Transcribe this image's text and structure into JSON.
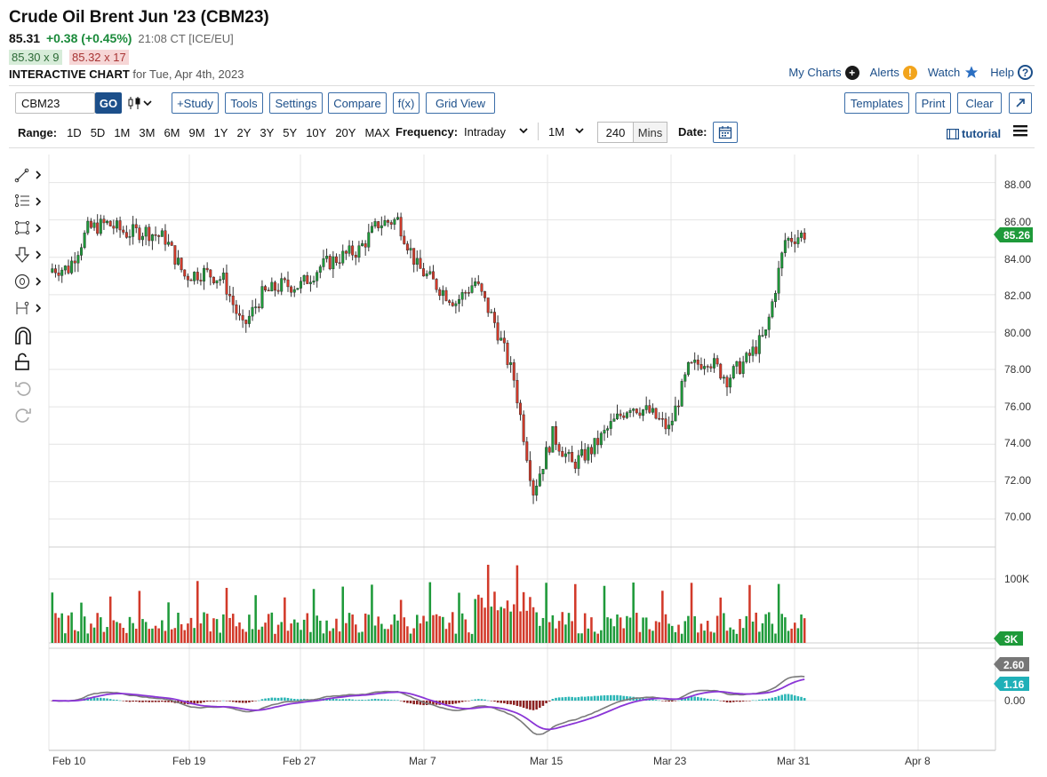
{
  "header": {
    "title": "Crude Oil Brent Jun '23 (CBM23)",
    "last": "85.31",
    "change": "+0.38 (+0.45%)",
    "time": "21:08 CT [ICE/EU]",
    "bid": "85.30 x 9",
    "ask": "85.32 x 17",
    "chart_label": "INTERACTIVE CHART",
    "chart_for": "for Tue, Apr 4th, 2023"
  },
  "links": {
    "my_charts": "My Charts",
    "alerts": "Alerts",
    "watch": "Watch",
    "help": "Help"
  },
  "toolbar": {
    "symbol": "CBM23",
    "go": "GO",
    "study": "+Study",
    "tools": "Tools",
    "settings": "Settings",
    "compare": "Compare",
    "fx": "f(x)",
    "grid_view": "Grid View",
    "templates": "Templates",
    "print": "Print",
    "clear": "Clear"
  },
  "range": {
    "label": "Range:",
    "options": [
      "1D",
      "5D",
      "1M",
      "3M",
      "6M",
      "9M",
      "1Y",
      "2Y",
      "3Y",
      "5Y",
      "10Y",
      "20Y",
      "MAX"
    ],
    "frequency_label": "Frequency:",
    "frequency": "Intraday",
    "interval": "1M",
    "minutes": "240",
    "minutes_unit": "Mins",
    "date_label": "Date:",
    "tutorial": "tutorial"
  },
  "colors": {
    "up": "#1e9a3a",
    "down": "#d23a2a",
    "macd_line": "#7a7a7a",
    "signal_line": "#8a35d6",
    "hist_pos": "#2ab5b5",
    "hist_neg": "#8a1f1f",
    "last_price_tag": "#1e9a3a",
    "accent": "#1c4f8a"
  },
  "chart_data": {
    "type": "candlestick",
    "price_axis": {
      "ticks": [
        "88.00",
        "86.00",
        "84.00",
        "82.00",
        "80.00",
        "78.00",
        "76.00",
        "74.00",
        "72.00",
        "70.00"
      ],
      "ylim": [
        68.5,
        89.5
      ]
    },
    "x_tick_labels": [
      "Feb 10",
      "Feb 19",
      "Feb 27",
      "Mar 7",
      "Mar 15",
      "Mar 23",
      "Mar 31",
      "Apr 8"
    ],
    "last_price_tag": "85.26",
    "price_series": [
      {
        "date": "Feb 9",
        "close": 83.4
      },
      {
        "date": "Feb 10",
        "close": 85.5
      },
      {
        "date": "Feb 13",
        "close": 85.8
      },
      {
        "date": "Feb 14",
        "close": 85.3
      },
      {
        "date": "Feb 15",
        "close": 85.4
      },
      {
        "date": "Feb 16",
        "close": 85.0
      },
      {
        "date": "Feb 17",
        "close": 83.0
      },
      {
        "date": "Feb 20",
        "close": 83.2
      },
      {
        "date": "Feb 21",
        "close": 82.8
      },
      {
        "date": "Feb 22",
        "close": 80.2
      },
      {
        "date": "Feb 23",
        "close": 82.0
      },
      {
        "date": "Feb 24",
        "close": 82.5
      },
      {
        "date": "Feb 27",
        "close": 82.5
      },
      {
        "date": "Feb 28",
        "close": 83.5
      },
      {
        "date": "Mar 1",
        "close": 84.0
      },
      {
        "date": "Mar 2",
        "close": 84.4
      },
      {
        "date": "Mar 3",
        "close": 85.8
      },
      {
        "date": "Mar 6",
        "close": 86.0
      },
      {
        "date": "Mar 7",
        "close": 83.5
      },
      {
        "date": "Mar 8",
        "close": 82.5
      },
      {
        "date": "Mar 9",
        "close": 81.6
      },
      {
        "date": "Mar 10",
        "close": 82.7
      },
      {
        "date": "Mar 13",
        "close": 80.5
      },
      {
        "date": "Mar 14",
        "close": 77.5
      },
      {
        "date": "Mar 15",
        "close": 71.5
      },
      {
        "date": "Mar 16",
        "close": 74.5
      },
      {
        "date": "Mar 17",
        "close": 72.9
      },
      {
        "date": "Mar 20",
        "close": 73.7
      },
      {
        "date": "Mar 21",
        "close": 75.0
      },
      {
        "date": "Mar 22",
        "close": 76.1
      },
      {
        "date": "Mar 23",
        "close": 75.7
      },
      {
        "date": "Mar 24",
        "close": 74.8
      },
      {
        "date": "Mar 27",
        "close": 78.0
      },
      {
        "date": "Mar 28",
        "close": 78.6
      },
      {
        "date": "Mar 29",
        "close": 77.5
      },
      {
        "date": "Mar 30",
        "close": 78.5
      },
      {
        "date": "Mar 31",
        "close": 79.9
      },
      {
        "date": "Apr 3",
        "close": 84.9
      },
      {
        "date": "Apr 4",
        "close": 85.26
      }
    ],
    "volume_axis": {
      "ticks": [
        "100K"
      ],
      "last_tag": "3K"
    },
    "macd_axis": {
      "ticks": [
        "0.00"
      ],
      "macd_tag": "2.60",
      "signal_tag": "1.16"
    }
  }
}
